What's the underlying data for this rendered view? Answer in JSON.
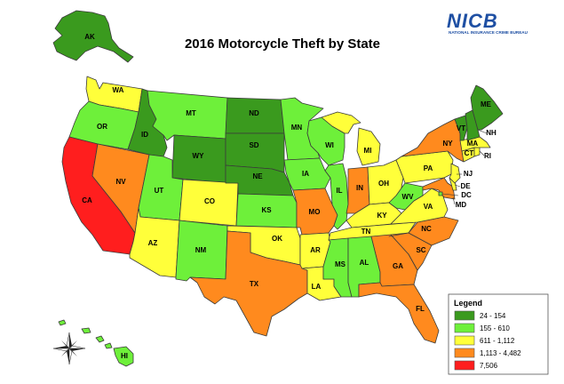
{
  "title": "2016 Motorcycle Theft by State",
  "logo": {
    "name": "NICB",
    "subtitle": "NATIONAL INSURANCE CRIME BUREAU"
  },
  "legend": {
    "title": "Legend",
    "classes": [
      {
        "label": "24 - 154",
        "color": "#3a9a1e"
      },
      {
        "label": "155 - 610",
        "color": "#6ef03a"
      },
      {
        "label": "611 - 1,112",
        "color": "#ffff3a"
      },
      {
        "label": "1,113 - 4,482",
        "color": "#ff8a1e"
      },
      {
        "label": "7,506",
        "color": "#ff1e1e"
      }
    ]
  },
  "states": {
    "AK": {
      "class": 0
    },
    "HI": {
      "class": 1
    },
    "WA": {
      "class": 2
    },
    "OR": {
      "class": 1
    },
    "CA": {
      "class": 4
    },
    "NV": {
      "class": 3
    },
    "ID": {
      "class": 0
    },
    "MT": {
      "class": 1
    },
    "WY": {
      "class": 0
    },
    "UT": {
      "class": 1
    },
    "AZ": {
      "class": 2
    },
    "CO": {
      "class": 2
    },
    "NM": {
      "class": 1
    },
    "ND": {
      "class": 0
    },
    "SD": {
      "class": 0
    },
    "NE": {
      "class": 0
    },
    "KS": {
      "class": 1
    },
    "OK": {
      "class": 2
    },
    "TX": {
      "class": 3
    },
    "MN": {
      "class": 1
    },
    "IA": {
      "class": 1
    },
    "MO": {
      "class": 3
    },
    "AR": {
      "class": 2
    },
    "LA": {
      "class": 2
    },
    "WI": {
      "class": 1
    },
    "IL": {
      "class": 1
    },
    "MI": {
      "class": 2
    },
    "IN": {
      "class": 3
    },
    "OH": {
      "class": 2
    },
    "KY": {
      "class": 2
    },
    "TN": {
      "class": 2
    },
    "MS": {
      "class": 1
    },
    "AL": {
      "class": 1
    },
    "GA": {
      "class": 3
    },
    "FL": {
      "class": 3
    },
    "SC": {
      "class": 3
    },
    "NC": {
      "class": 3
    },
    "VA": {
      "class": 2
    },
    "WV": {
      "class": 1
    },
    "PA": {
      "class": 2
    },
    "NY": {
      "class": 3
    },
    "MD": {
      "class": 3
    },
    "DE": {
      "class": 2
    },
    "NJ": {
      "class": 2
    },
    "DC": {
      "class": 1
    },
    "CT": {
      "class": 2
    },
    "RI": {
      "class": 2
    },
    "MA": {
      "class": 2
    },
    "VT": {
      "class": 0
    },
    "NH": {
      "class": 0
    },
    "ME": {
      "class": 0
    }
  }
}
